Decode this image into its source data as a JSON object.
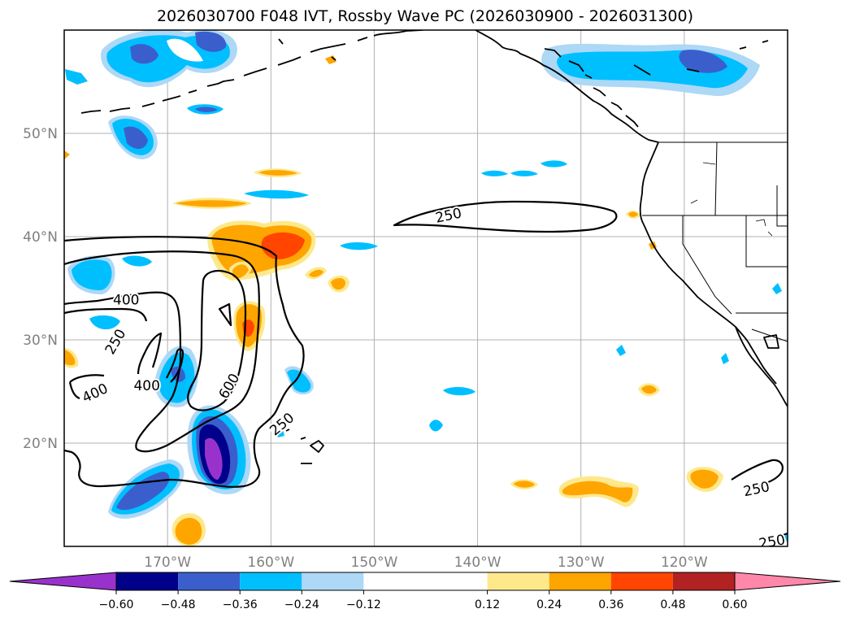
{
  "chart_data": {
    "type": "map",
    "title": "2026030700 F048 IVT, Rossby Wave PC (2026030900 - 2026031300)",
    "lon_range": [
      -180,
      -110
    ],
    "lat_range": [
      10,
      60
    ],
    "x_ticks": [
      {
        "lon": -170,
        "label": "170°W"
      },
      {
        "lon": -160,
        "label": "160°W"
      },
      {
        "lon": -150,
        "label": "150°W"
      },
      {
        "lon": -140,
        "label": "140°W"
      },
      {
        "lon": -130,
        "label": "130°W"
      },
      {
        "lon": -120,
        "label": "120°W"
      }
    ],
    "y_ticks": [
      {
        "lat": 20,
        "label": "20°N"
      },
      {
        "lat": 30,
        "label": "30°N"
      },
      {
        "lat": 40,
        "label": "40°N"
      },
      {
        "lat": 50,
        "label": "50°N"
      }
    ],
    "colorbar": {
      "levels": [
        -0.6,
        -0.48,
        -0.36,
        -0.24,
        -0.12,
        0.12,
        0.24,
        0.36,
        0.48,
        0.6
      ],
      "tick_labels": [
        "−0.60",
        "−0.48",
        "−0.36",
        "−0.24",
        "−0.12",
        "0.12",
        "0.24",
        "0.36",
        "0.48",
        "0.60"
      ],
      "colors": [
        "#9932cc",
        "#00008b",
        "#3a5fcd",
        "#00bfff",
        "#add8f6",
        "#ffffff",
        "#fde98c",
        "#ffa500",
        "#ff4500",
        "#b22222",
        "#ff88aa"
      ],
      "extend": "both"
    },
    "ivt_contours": [
      {
        "level": 250,
        "label": "250"
      },
      {
        "level": 400,
        "label": "400"
      },
      {
        "level": 600,
        "label": "600"
      }
    ],
    "contour_labels": [
      {
        "text": "250",
        "lon": -142.8,
        "lat": 42.0,
        "rotation": -12
      },
      {
        "text": "400",
        "lon": -174.0,
        "lat": 33.8,
        "rotation": 0
      },
      {
        "text": "250",
        "lon": -175.0,
        "lat": 29.8,
        "rotation": -60
      },
      {
        "text": "400",
        "lon": -172.0,
        "lat": 25.5,
        "rotation": 0
      },
      {
        "text": "400",
        "lon": -177.0,
        "lat": 24.8,
        "rotation": -25
      },
      {
        "text": "600",
        "lon": -164.0,
        "lat": 25.5,
        "rotation": -60
      },
      {
        "text": "250",
        "lon": -158.9,
        "lat": 21.8,
        "rotation": -40
      },
      {
        "text": "250",
        "lon": -113.0,
        "lat": 15.5,
        "rotation": -12
      },
      {
        "text": "250",
        "lon": -111.5,
        "lat": 10.4,
        "rotation": -10
      }
    ]
  }
}
